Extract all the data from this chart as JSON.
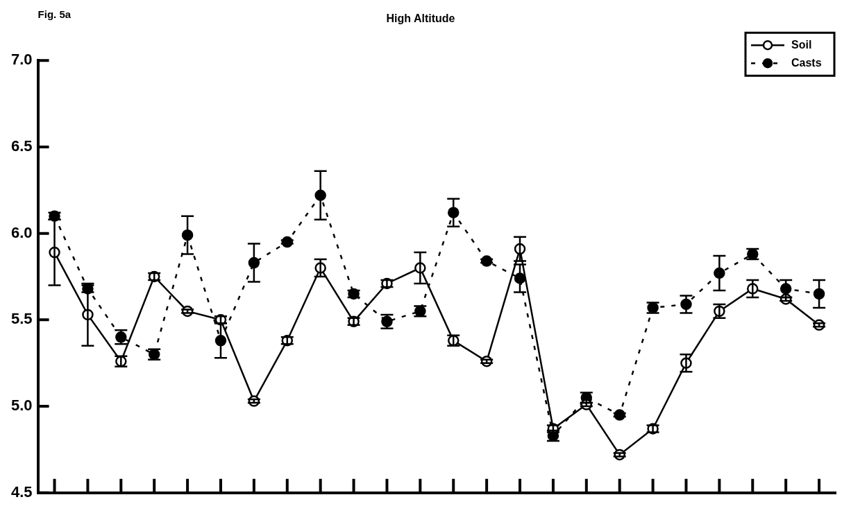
{
  "chart_data": {
    "type": "line",
    "title": "High Altitude",
    "annotations": [
      "Fig. 5a"
    ],
    "categories": [
      null,
      null,
      null,
      null,
      null,
      null,
      null,
      null,
      null,
      null,
      null,
      null,
      null,
      null,
      null,
      null,
      null,
      null,
      null,
      null,
      null,
      null,
      null,
      null
    ],
    "series": [
      {
        "name": "Soil",
        "color": "#000000",
        "line_style": "solid",
        "values": [
          5.89,
          5.53,
          5.26,
          5.75,
          5.55,
          5.5,
          5.03,
          5.38,
          5.8,
          5.49,
          5.71,
          5.8,
          5.38,
          5.26,
          5.91,
          4.87,
          5.01,
          4.72,
          4.87,
          5.25,
          5.55,
          5.68,
          5.62,
          5.47
        ],
        "errors": [
          0.19,
          0.18,
          0.03,
          0.02,
          0.01,
          0.02,
          0.01,
          0.02,
          0.05,
          0.02,
          0.02,
          0.09,
          0.03,
          0.01,
          0.07,
          0.02,
          0.01,
          0.01,
          0.02,
          0.05,
          0.04,
          0.05,
          0.01,
          0.01
        ]
      },
      {
        "name": "Casts",
        "color": "#000000",
        "line_style": "dashed",
        "values": [
          6.1,
          5.68,
          5.4,
          5.3,
          5.99,
          5.38,
          5.83,
          5.95,
          6.22,
          5.65,
          5.49,
          5.55,
          6.12,
          5.84,
          5.74,
          4.83,
          5.05,
          4.95,
          5.57,
          5.59,
          5.77,
          5.88,
          5.68,
          5.65
        ],
        "errors": [
          0.02,
          0.02,
          0.04,
          0.03,
          0.11,
          0.1,
          0.11,
          0.01,
          0.14,
          0.02,
          0.04,
          0.03,
          0.08,
          0.01,
          0.08,
          0.03,
          0.03,
          0.01,
          0.03,
          0.05,
          0.1,
          0.03,
          0.05,
          0.08
        ]
      }
    ],
    "ylim": [
      4.5,
      7.0
    ],
    "yticks": [
      4.5,
      {
        "value": 5,
        "label": "5.0"
      },
      5.5,
      {
        "value": 6,
        "label": "6.0"
      },
      6.5,
      {
        "value": 7,
        "label": "7.0"
      }
    ],
    "tick_labels": "y",
    "grid": false,
    "legend": "top right",
    "marker": "circle"
  }
}
